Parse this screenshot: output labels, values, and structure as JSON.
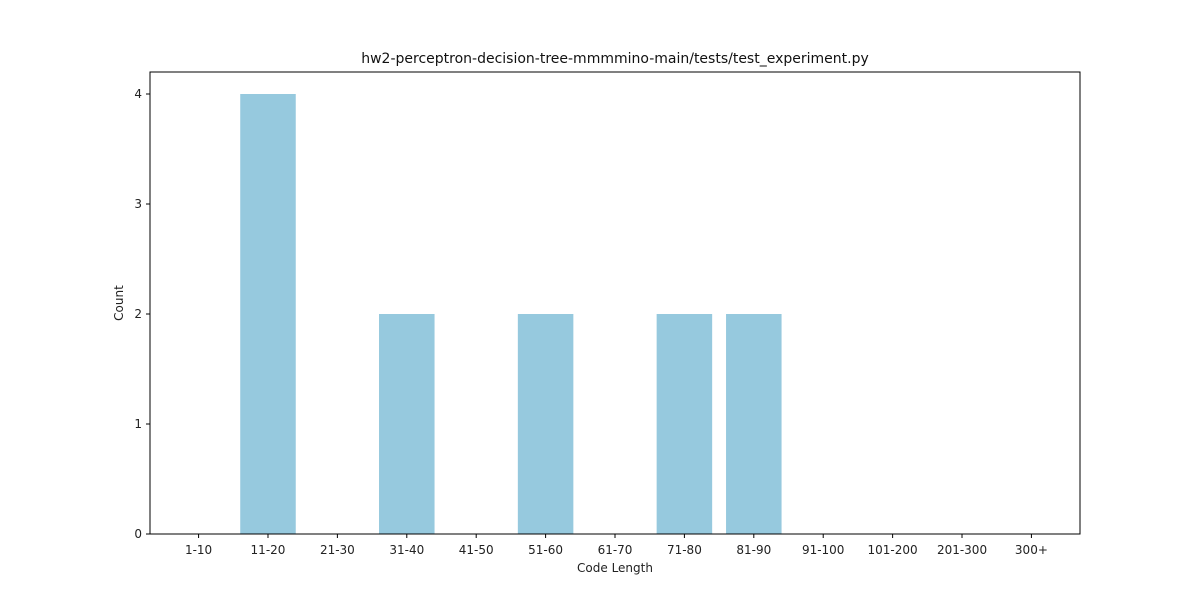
{
  "chart_data": {
    "type": "bar",
    "title": "hw2-perceptron-decision-tree-mmmmino-main/tests/test_experiment.py",
    "xlabel": "Code Length",
    "ylabel": "Count",
    "categories": [
      "1-10",
      "11-20",
      "21-30",
      "31-40",
      "41-50",
      "51-60",
      "61-70",
      "71-80",
      "81-90",
      "91-100",
      "101-200",
      "201-300",
      "300+"
    ],
    "values": [
      0,
      4,
      0,
      2,
      0,
      2,
      0,
      2,
      2,
      0,
      0,
      0,
      0
    ],
    "ylim": [
      0,
      4.2
    ],
    "yticks": [
      0,
      1,
      2,
      3,
      4
    ],
    "grid": false,
    "bar_color": "#96c9de"
  }
}
